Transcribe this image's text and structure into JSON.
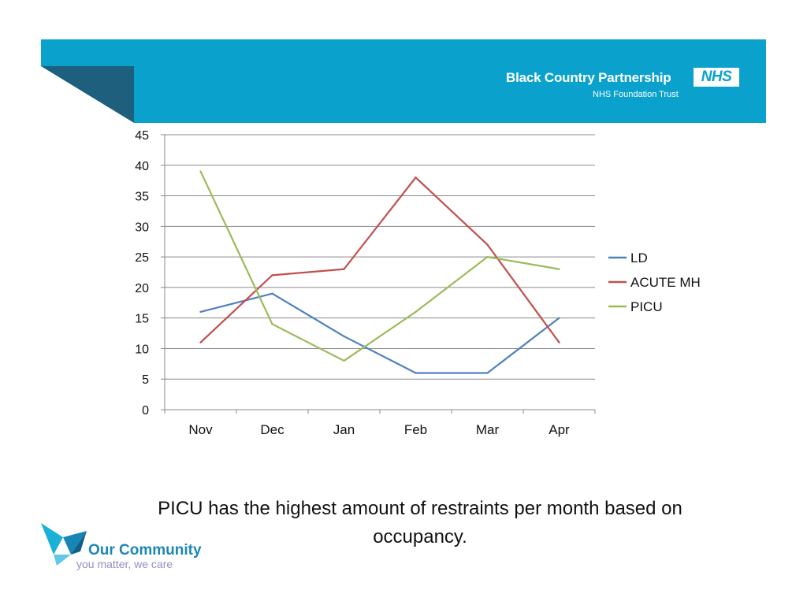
{
  "header": {
    "organisation": "Black Country Partnership",
    "badge": "NHS",
    "subtitle": "NHS Foundation Trust"
  },
  "chart_data": {
    "type": "line",
    "title": "",
    "xlabel": "",
    "ylabel": "",
    "categories": [
      "Nov",
      "Dec",
      "Jan",
      "Feb",
      "Mar",
      "Apr"
    ],
    "ylim": [
      0,
      45
    ],
    "yticks": [
      0,
      5,
      10,
      15,
      20,
      25,
      30,
      35,
      40,
      45
    ],
    "grid": true,
    "legend_position": "right",
    "series": [
      {
        "name": "LD",
        "color": "#4f81bd",
        "values": [
          16,
          19,
          12,
          6,
          6,
          15
        ]
      },
      {
        "name": "ACUTE MH",
        "color": "#c0504d",
        "values": [
          11,
          22,
          23,
          38,
          27,
          11
        ]
      },
      {
        "name": "PICU",
        "color": "#9bbb59",
        "values": [
          39,
          14,
          8,
          16,
          25,
          23
        ]
      }
    ]
  },
  "caption": {
    "line1": "PICU has the highest amount of restraints per month based on",
    "line2": "occupancy."
  },
  "footer": {
    "title": "Our Community",
    "tagline": "you matter, we care"
  }
}
